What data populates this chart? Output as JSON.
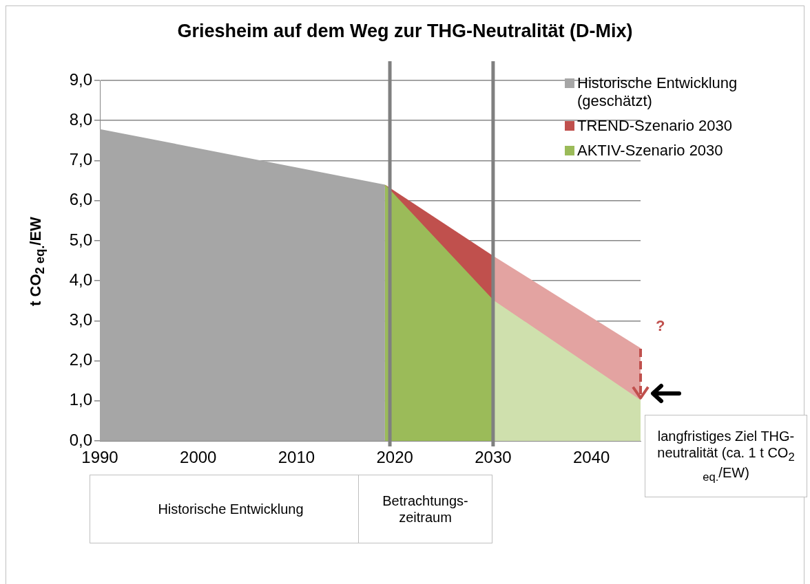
{
  "chart_data": {
    "type": "area",
    "title": "Griesheim auf dem Weg zur THG-Neutralität (D-Mix)",
    "ylabel": "t CO$_{2 eq.}$/EW",
    "xlim": [
      1990,
      2045
    ],
    "xticks": [
      1990,
      2000,
      2010,
      2020,
      2030,
      2040
    ],
    "ylim": [
      0,
      9
    ],
    "yticks": [
      {
        "value": 0,
        "label": "0,0"
      },
      {
        "value": 1,
        "label": "1,0"
      },
      {
        "value": 2,
        "label": "2,0"
      },
      {
        "value": 3,
        "label": "3,0"
      },
      {
        "value": 4,
        "label": "4,0"
      },
      {
        "value": 5,
        "label": "5,0"
      },
      {
        "value": 6,
        "label": "6,0"
      },
      {
        "value": 7,
        "label": "7,0"
      },
      {
        "value": 8,
        "label": "8,0"
      },
      {
        "value": 9,
        "label": "9,0"
      }
    ],
    "grid": "y",
    "legend": "top right",
    "series": [
      {
        "name": "Historische Entwicklung (geschätzt)",
        "color": "#a6a6a6",
        "x": [
          1990,
          2019
        ],
        "values": [
          7.77,
          6.38
        ]
      },
      {
        "name": "TREND-Szenario 2030",
        "color": "#c0504d",
        "x": [
          2019,
          2030
        ],
        "values": [
          6.38,
          4.6
        ]
      },
      {
        "color": "#e3a3a1",
        "x": [
          2030,
          2045
        ],
        "values": [
          4.6,
          2.3
        ]
      },
      {
        "name": "AKTIV-Szenario 2030",
        "color": "#9bbb59",
        "x": [
          2019,
          2030
        ],
        "values": [
          6.38,
          3.5
        ]
      },
      {
        "color": "#cfe0ad",
        "x": [
          2030,
          2045
        ],
        "values": [
          3.5,
          1.0
        ]
      }
    ],
    "ref_lines": [
      {
        "axis": "x",
        "value": 2019.5,
        "color": "#808080"
      },
      {
        "axis": "x",
        "value": 2030,
        "color": "#808080"
      }
    ],
    "annotations": [
      "Historische Entwicklung",
      "Betrachtungs-zeitraum",
      "langfristiges Ziel THG-neutralität (ca. 1 t CO$_{2 eq.}$/EW)",
      "?"
    ]
  }
}
